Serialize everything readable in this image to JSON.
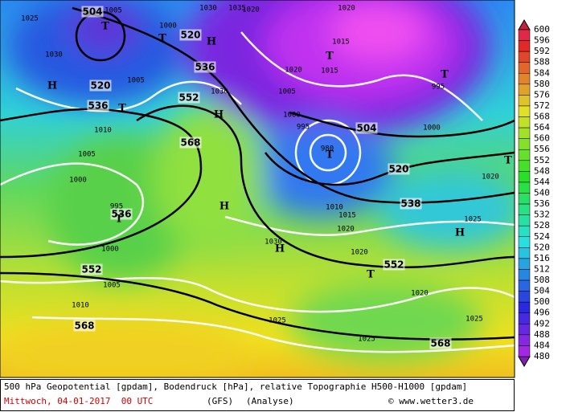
{
  "caption": {
    "line1": "500 hPa Geopotential [gpdam], Bodendruck [hPa], relative Topographie H500-H1000 [gpdam]",
    "date": "Mittwoch, 04-01-2017  00 UTC",
    "model": "(GFS)",
    "analysis": "(Analyse)",
    "credit": "© www.wetter3.de"
  },
  "colorbar": {
    "ticks": [
      600,
      596,
      592,
      588,
      584,
      580,
      576,
      572,
      568,
      564,
      560,
      556,
      552,
      548,
      544,
      540,
      536,
      532,
      528,
      524,
      520,
      516,
      512,
      508,
      504,
      500,
      496,
      492,
      488,
      484,
      480
    ]
  },
  "geopotential_labels": [
    504,
    520,
    536,
    520,
    536,
    552,
    568,
    504,
    520,
    538,
    536,
    552,
    552,
    568,
    568
  ],
  "pressure_labels": [
    1025,
    1005,
    1000,
    1030,
    1035,
    1020,
    1020,
    1030,
    1005,
    1015,
    1020,
    1015,
    995,
    1030,
    1005,
    1010,
    1000,
    995,
    1000,
    1005,
    980,
    1000,
    1020,
    995,
    1010,
    1015,
    1020,
    1025,
    1000,
    1030,
    1020,
    1005,
    1010,
    1020,
    1025,
    1025,
    1025
  ],
  "markers": [
    "T",
    "T",
    "H",
    "T",
    "T",
    "H",
    "T",
    "H",
    "T",
    "T",
    "H",
    "T",
    "H",
    "H",
    "T"
  ]
}
